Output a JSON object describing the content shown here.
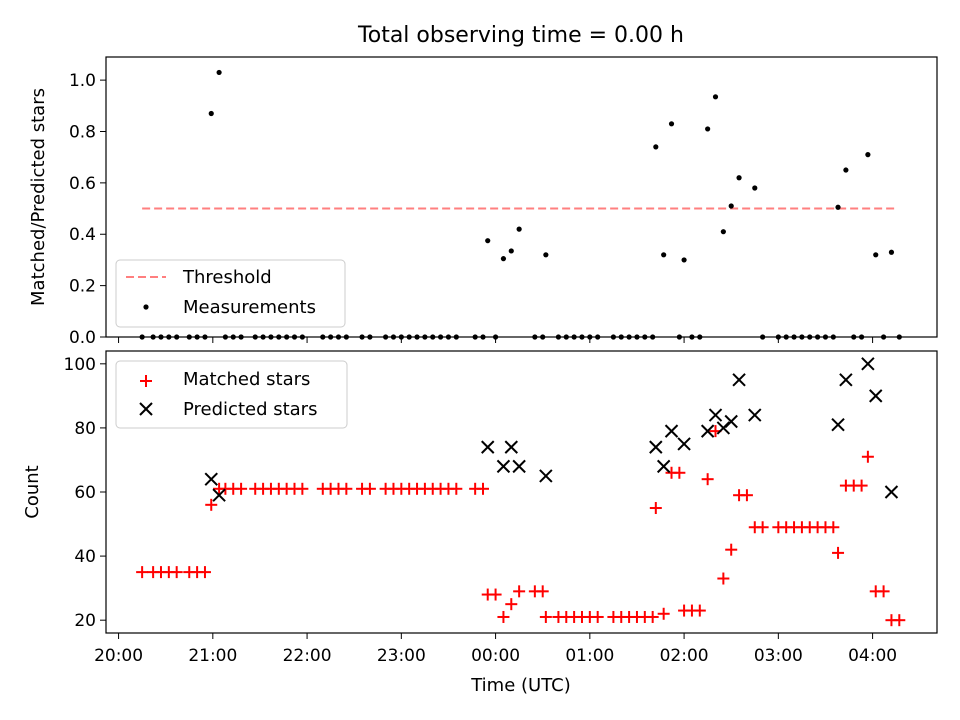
{
  "chart_data": [
    {
      "type": "scatter",
      "title": "Total observing time = 0.00 h",
      "xlabel": "",
      "ylabel": "Matched/Predicted stars",
      "xlim": [
        "19:52",
        "04:41"
      ],
      "ylim": [
        0,
        1.09
      ],
      "yticks": [
        "0.0",
        "0.2",
        "0.4",
        "0.6",
        "0.8",
        "1.0"
      ],
      "grid": false,
      "legend_position": "lower-left",
      "threshold": {
        "name": "Threshold",
        "value": 0.5,
        "x_range": [
          "20:15",
          "04:15"
        ],
        "color": "#ff7f7f",
        "style": "dashed"
      },
      "series": [
        {
          "name": "Measurements",
          "marker": "dot",
          "color": "#000000",
          "points": [
            [
              "20:15",
              0
            ],
            [
              "20:22",
              0
            ],
            [
              "20:27",
              0
            ],
            [
              "20:32",
              0
            ],
            [
              "20:37",
              0
            ],
            [
              "20:45",
              0
            ],
            [
              "20:50",
              0
            ],
            [
              "20:55",
              0
            ],
            [
              "20:59",
              0.87
            ],
            [
              "21:04",
              1.03
            ],
            [
              "21:08",
              0
            ],
            [
              "21:13",
              0
            ],
            [
              "21:18",
              0
            ],
            [
              "21:27",
              0
            ],
            [
              "21:32",
              0
            ],
            [
              "21:37",
              0
            ],
            [
              "21:42",
              0
            ],
            [
              "21:47",
              0
            ],
            [
              "21:52",
              0
            ],
            [
              "21:57",
              0
            ],
            [
              "22:10",
              0
            ],
            [
              "22:15",
              0
            ],
            [
              "22:20",
              0
            ],
            [
              "22:25",
              0
            ],
            [
              "22:35",
              0
            ],
            [
              "22:40",
              0
            ],
            [
              "22:50",
              0
            ],
            [
              "22:55",
              0
            ],
            [
              "23:00",
              0
            ],
            [
              "23:05",
              0
            ],
            [
              "23:10",
              0
            ],
            [
              "23:15",
              0
            ],
            [
              "23:20",
              0
            ],
            [
              "23:25",
              0
            ],
            [
              "23:30",
              0
            ],
            [
              "23:35",
              0
            ],
            [
              "23:47",
              0
            ],
            [
              "23:52",
              0
            ],
            [
              "23:55",
              0.375
            ],
            [
              "00:00",
              0
            ],
            [
              "00:05",
              0.305
            ],
            [
              "00:10",
              0.335
            ],
            [
              "00:15",
              0.42
            ],
            [
              "00:25",
              0
            ],
            [
              "00:30",
              0
            ],
            [
              "00:32",
              0.32
            ],
            [
              "00:40",
              0
            ],
            [
              "00:45",
              0
            ],
            [
              "00:50",
              0
            ],
            [
              "00:55",
              0
            ],
            [
              "01:00",
              0
            ],
            [
              "01:05",
              0
            ],
            [
              "01:15",
              0
            ],
            [
              "01:20",
              0
            ],
            [
              "01:25",
              0
            ],
            [
              "01:30",
              0
            ],
            [
              "01:35",
              0
            ],
            [
              "01:40",
              0
            ],
            [
              "01:42",
              0.74
            ],
            [
              "01:47",
              0.32
            ],
            [
              "01:52",
              0.83
            ],
            [
              "01:57",
              0
            ],
            [
              "02:00",
              0.3
            ],
            [
              "02:05",
              0
            ],
            [
              "02:10",
              0
            ],
            [
              "02:15",
              0.81
            ],
            [
              "02:20",
              0.935
            ],
            [
              "02:25",
              0.41
            ],
            [
              "02:30",
              0.51
            ],
            [
              "02:35",
              0.62
            ],
            [
              "02:45",
              0.58
            ],
            [
              "02:50",
              0
            ],
            [
              "03:00",
              0
            ],
            [
              "03:05",
              0
            ],
            [
              "03:10",
              0
            ],
            [
              "03:15",
              0
            ],
            [
              "03:20",
              0
            ],
            [
              "03:25",
              0
            ],
            [
              "03:30",
              0
            ],
            [
              "03:35",
              0
            ],
            [
              "03:38",
              0.505
            ],
            [
              "03:43",
              0.65
            ],
            [
              "03:48",
              0
            ],
            [
              "03:53",
              0
            ],
            [
              "03:57",
              0.71
            ],
            [
              "04:02",
              0.32
            ],
            [
              "04:07",
              0
            ],
            [
              "04:12",
              0.33
            ],
            [
              "04:17",
              0
            ]
          ]
        }
      ]
    },
    {
      "type": "scatter",
      "title": "",
      "xlabel": "Time (UTC)",
      "ylabel": "Count",
      "xlim": [
        "19:52",
        "04:41"
      ],
      "ylim": [
        16,
        104
      ],
      "yticks": [
        "20",
        "40",
        "60",
        "80",
        "100"
      ],
      "xticks": [
        "20:00",
        "21:00",
        "22:00",
        "23:00",
        "00:00",
        "01:00",
        "02:00",
        "03:00",
        "04:00"
      ],
      "grid": false,
      "legend_position": "upper-left",
      "series": [
        {
          "name": "Matched stars",
          "marker": "plus",
          "color": "#ff0000",
          "points": [
            [
              "20:15",
              35
            ],
            [
              "20:22",
              35
            ],
            [
              "20:27",
              35
            ],
            [
              "20:32",
              35
            ],
            [
              "20:37",
              35
            ],
            [
              "20:45",
              35
            ],
            [
              "20:50",
              35
            ],
            [
              "20:55",
              35
            ],
            [
              "20:59",
              56
            ],
            [
              "21:04",
              61
            ],
            [
              "21:08",
              61
            ],
            [
              "21:13",
              61
            ],
            [
              "21:18",
              61
            ],
            [
              "21:27",
              61
            ],
            [
              "21:32",
              61
            ],
            [
              "21:37",
              61
            ],
            [
              "21:42",
              61
            ],
            [
              "21:47",
              61
            ],
            [
              "21:52",
              61
            ],
            [
              "21:57",
              61
            ],
            [
              "22:10",
              61
            ],
            [
              "22:15",
              61
            ],
            [
              "22:20",
              61
            ],
            [
              "22:25",
              61
            ],
            [
              "22:35",
              61
            ],
            [
              "22:40",
              61
            ],
            [
              "22:50",
              61
            ],
            [
              "22:55",
              61
            ],
            [
              "23:00",
              61
            ],
            [
              "23:05",
              61
            ],
            [
              "23:10",
              61
            ],
            [
              "23:15",
              61
            ],
            [
              "23:20",
              61
            ],
            [
              "23:25",
              61
            ],
            [
              "23:30",
              61
            ],
            [
              "23:35",
              61
            ],
            [
              "23:47",
              61
            ],
            [
              "23:52",
              61
            ],
            [
              "23:55",
              28
            ],
            [
              "00:00",
              28
            ],
            [
              "00:05",
              21
            ],
            [
              "00:10",
              25
            ],
            [
              "00:15",
              29
            ],
            [
              "00:25",
              29
            ],
            [
              "00:30",
              29
            ],
            [
              "00:32",
              21
            ],
            [
              "00:40",
              21
            ],
            [
              "00:45",
              21
            ],
            [
              "00:50",
              21
            ],
            [
              "00:55",
              21
            ],
            [
              "01:00",
              21
            ],
            [
              "01:05",
              21
            ],
            [
              "01:15",
              21
            ],
            [
              "01:20",
              21
            ],
            [
              "01:25",
              21
            ],
            [
              "01:30",
              21
            ],
            [
              "01:35",
              21
            ],
            [
              "01:40",
              21
            ],
            [
              "01:42",
              55
            ],
            [
              "01:47",
              22
            ],
            [
              "01:52",
              66
            ],
            [
              "01:57",
              66
            ],
            [
              "02:00",
              23
            ],
            [
              "02:05",
              23
            ],
            [
              "02:10",
              23
            ],
            [
              "02:15",
              64
            ],
            [
              "02:20",
              79
            ],
            [
              "02:25",
              33
            ],
            [
              "02:30",
              42
            ],
            [
              "02:35",
              59
            ],
            [
              "02:45",
              49
            ],
            [
              "02:40",
              59
            ],
            [
              "02:50",
              49
            ],
            [
              "03:00",
              49
            ],
            [
              "03:05",
              49
            ],
            [
              "03:10",
              49
            ],
            [
              "03:15",
              49
            ],
            [
              "03:20",
              49
            ],
            [
              "03:25",
              49
            ],
            [
              "03:30",
              49
            ],
            [
              "03:35",
              49
            ],
            [
              "03:38",
              41
            ],
            [
              "03:43",
              62
            ],
            [
              "03:48",
              62
            ],
            [
              "03:53",
              62
            ],
            [
              "03:57",
              71
            ],
            [
              "04:02",
              29
            ],
            [
              "04:07",
              29
            ],
            [
              "04:12",
              20
            ],
            [
              "04:17",
              20
            ]
          ]
        },
        {
          "name": "Predicted stars",
          "marker": "x",
          "color": "#000000",
          "points": [
            [
              "20:59",
              64
            ],
            [
              "21:04",
              59
            ],
            [
              "23:55",
              74
            ],
            [
              "00:05",
              68
            ],
            [
              "00:10",
              74
            ],
            [
              "00:15",
              68
            ],
            [
              "00:32",
              65
            ],
            [
              "01:42",
              74
            ],
            [
              "01:47",
              68
            ],
            [
              "01:52",
              79
            ],
            [
              "02:00",
              75
            ],
            [
              "02:15",
              79
            ],
            [
              "02:20",
              84
            ],
            [
              "02:25",
              80
            ],
            [
              "02:30",
              82
            ],
            [
              "02:35",
              95
            ],
            [
              "02:45",
              84
            ],
            [
              "03:38",
              81
            ],
            [
              "03:43",
              95
            ],
            [
              "03:57",
              100
            ],
            [
              "04:02",
              90
            ],
            [
              "04:12",
              60
            ]
          ]
        }
      ]
    }
  ]
}
